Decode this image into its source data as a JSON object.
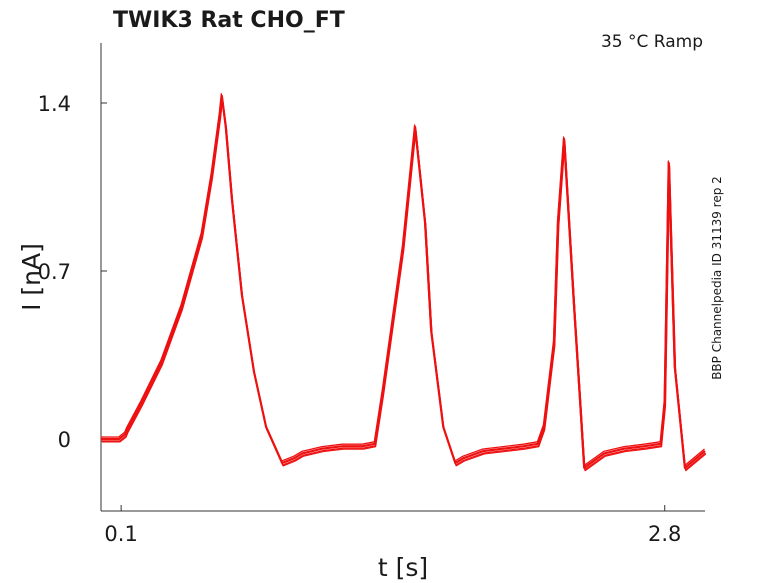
{
  "chart_data": {
    "type": "line",
    "title": "TWIK3  Rat  CHO_FT",
    "subtitle": "35 °C  Ramp",
    "side_label": "BBP Channelpedia ID 31139 rep 2",
    "xlabel": "t [s]",
    "ylabel": "I [nA]",
    "xlim": [
      0.0,
      3.0
    ],
    "ylim": [
      -0.3,
      1.65
    ],
    "xticks": [
      0.1,
      2.8
    ],
    "xtick_labels": [
      "0.1",
      "2.8"
    ],
    "yticks": [
      0,
      0.7,
      1.4
    ],
    "ytick_labels": [
      "0",
      "0.7",
      "1.4"
    ],
    "grid": false,
    "legend": "none",
    "color": "#ee1111",
    "series": [
      {
        "x": [
          0.0,
          0.09,
          0.12,
          0.13,
          0.2,
          0.3,
          0.4,
          0.5,
          0.55,
          0.59,
          0.6,
          0.62,
          0.65,
          0.7,
          0.76,
          0.82,
          0.9,
          0.96,
          1.0,
          1.1,
          1.2,
          1.3,
          1.36,
          1.4,
          1.5,
          1.56,
          1.61,
          1.64,
          1.7,
          1.76,
          1.8,
          1.9,
          2.0,
          2.1,
          2.17,
          2.2,
          2.25,
          2.27,
          2.3,
          2.35,
          2.38,
          2.4,
          2.5,
          2.6,
          2.7,
          2.78,
          2.8,
          2.82,
          2.85,
          2.9,
          3.0
        ],
        "values": [
          0.0,
          0.0,
          0.02,
          0.04,
          0.15,
          0.32,
          0.55,
          0.85,
          1.1,
          1.35,
          1.43,
          1.3,
          1.0,
          0.6,
          0.28,
          0.05,
          -0.1,
          -0.08,
          -0.06,
          -0.04,
          -0.03,
          -0.03,
          -0.02,
          0.2,
          0.8,
          1.3,
          0.9,
          0.45,
          0.05,
          -0.1,
          -0.08,
          -0.05,
          -0.04,
          -0.03,
          -0.02,
          0.05,
          0.4,
          0.9,
          1.25,
          0.55,
          0.15,
          -0.12,
          -0.06,
          -0.04,
          -0.03,
          -0.02,
          0.15,
          1.15,
          0.3,
          -0.12,
          -0.05
        ]
      }
    ]
  }
}
